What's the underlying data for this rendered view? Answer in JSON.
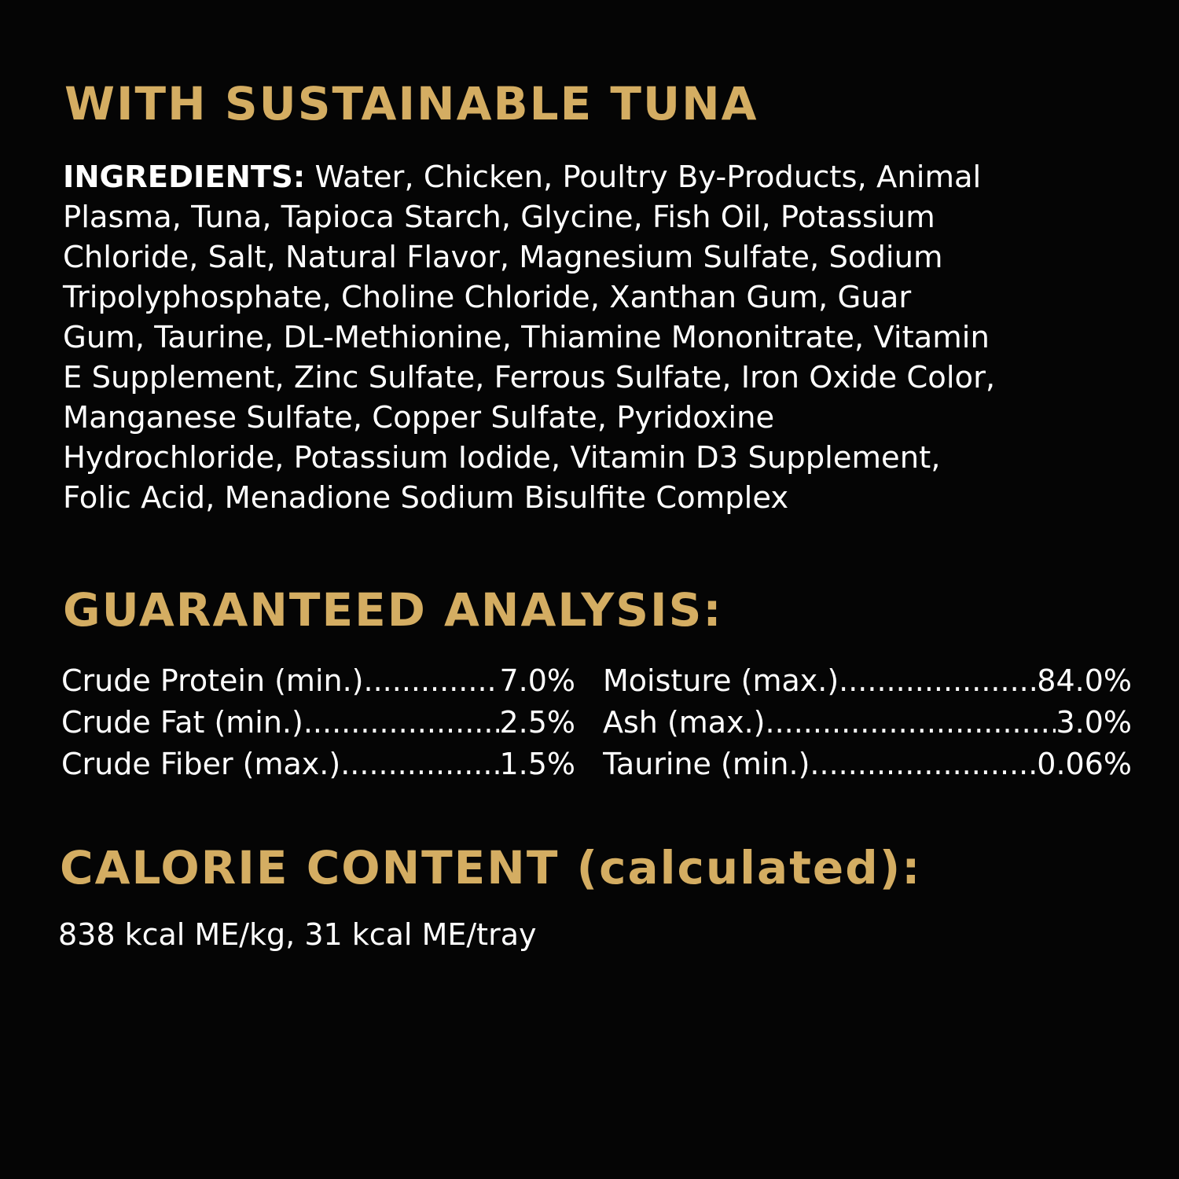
{
  "title": "WITH SUSTAINABLE TUNA",
  "ingredients": {
    "label": "INGREDIENTS:",
    "lines": [
      " Water, Chicken, Poultry By-Products, Animal",
      "Plasma, Tuna, Tapioca Starch, Glycine, Fish Oil,  Potassium",
      "Chloride, Salt, Natural Flavor, Magnesium Sulfate, Sodium",
      "Tripolyphosphate, Choline Chloride, Xanthan Gum, Guar",
      "Gum, Taurine, DL-Methionine, Thiamine Mononitrate, Vitamin",
      "E Supplement, Zinc Sulfate, Ferrous Sulfate, Iron Oxide Color,",
      "Manganese Sulfate, Copper Sulfate, Pyridoxine",
      "Hydrochloride, Potassium Iodide, Vitamin D3 Supplement,",
      "Folic Acid, Menadione Sodium Bisulfite Complex"
    ]
  },
  "analysis": {
    "heading": "GUARANTEED ANALYSIS:",
    "left": [
      {
        "label": "Crude Protein (min.)",
        "value": "7.0%"
      },
      {
        "label": "Crude Fat (min.)",
        "value": "2.5%"
      },
      {
        "label": "Crude Fiber (max.)",
        "value": "1.5%"
      }
    ],
    "right": [
      {
        "label": "Moisture (max.)",
        "value": "84.0%"
      },
      {
        "label": "Ash (max.)",
        "value": "3.0%"
      },
      {
        "label": "Taurine (min.)",
        "value": "0.06%"
      }
    ]
  },
  "calorie": {
    "heading": "CALORIE CONTENT (calculated):",
    "text": "838 kcal ME/kg, 31 kcal ME/tray"
  },
  "colors": {
    "accent": "#d4ad62",
    "background": "#050505",
    "text": "#ffffff"
  }
}
